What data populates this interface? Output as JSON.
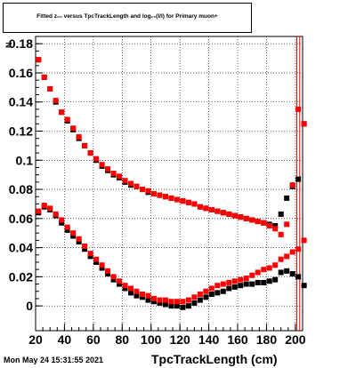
{
  "title": "Fitted z₀₀ versus TpcTrackLength and log₁₀(l/l) for Primary muon+",
  "ylabel_char": "N",
  "footer": "Mon May 24 15:31:55 2021",
  "colors": {
    "series_black": "#000000",
    "series_red": "#ff0000",
    "grid": "#000000",
    "vline": "#ff0000"
  },
  "chart_data": {
    "type": "scatter",
    "title": "Fitted z₀₀ versus TpcTrackLength and log₁₀(l/l) for Primary muon+",
    "xlabel": "TpcTrackLength (cm)",
    "ylabel": "",
    "xlim": [
      20,
      205
    ],
    "ylim": [
      -0.017,
      0.185
    ],
    "grid": true,
    "xticks": [
      20,
      40,
      60,
      80,
      100,
      120,
      140,
      160,
      180,
      200
    ],
    "xtick_labels": [
      "20",
      "40",
      "60",
      "80",
      "100",
      "120",
      "140",
      "160",
      "180",
      "200"
    ],
    "yticks": [
      0,
      0.02,
      0.04,
      0.06,
      0.08,
      0.1,
      0.12,
      0.14,
      0.16,
      0.18
    ],
    "ytick_labels": [
      "0",
      "0.02",
      "0.04",
      "0.06",
      "0.08",
      "0.1",
      "0.12",
      "0.14",
      "0.16",
      "0.18"
    ],
    "vlines": [
      201,
      203
    ],
    "series": [
      {
        "color": "#000000",
        "marker": "square",
        "size": 6,
        "x": [
          22,
          26,
          30,
          34,
          38,
          42,
          46,
          50,
          54,
          58,
          62,
          66,
          70,
          74,
          78,
          82,
          86,
          90,
          94,
          98,
          102,
          106,
          110,
          114,
          118,
          122,
          126,
          130,
          134,
          138,
          142,
          146,
          150,
          154,
          158,
          162,
          166,
          170,
          174,
          178,
          182,
          186,
          190,
          194,
          198,
          202,
          206
        ],
        "y": [
          0.169,
          0.157,
          0.149,
          0.14,
          0.133,
          0.127,
          0.121,
          0.115,
          0.11,
          0.105,
          0.1,
          0.096,
          0.093,
          0.09,
          0.088,
          0.085,
          0.083,
          0.082,
          0.08,
          0.078,
          0.077,
          0.076,
          0.075,
          0.074,
          0.073,
          0.072,
          0.071,
          0.07,
          0.068,
          0.067,
          0.066,
          0.065,
          0.064,
          0.063,
          0.062,
          0.061,
          0.06,
          0.059,
          0.058,
          0.057,
          0.056,
          0.055,
          0.063,
          0.074,
          0.082,
          0.087,
          0.125
        ]
      },
      {
        "color": "#ff0000",
        "marker": "square",
        "size": 6,
        "x": [
          22,
          26,
          30,
          34,
          38,
          42,
          46,
          50,
          54,
          58,
          62,
          66,
          70,
          74,
          78,
          82,
          86,
          90,
          94,
          98,
          102,
          106,
          110,
          114,
          118,
          122,
          126,
          130,
          134,
          138,
          142,
          146,
          150,
          154,
          158,
          162,
          166,
          170,
          174,
          178,
          182,
          186,
          190,
          194,
          198,
          202,
          206
        ],
        "y": [
          0.169,
          0.157,
          0.149,
          0.141,
          0.133,
          0.128,
          0.122,
          0.116,
          0.11,
          0.105,
          0.101,
          0.097,
          0.094,
          0.091,
          0.089,
          0.086,
          0.084,
          0.082,
          0.08,
          0.079,
          0.077,
          0.076,
          0.075,
          0.074,
          0.073,
          0.072,
          0.071,
          0.07,
          0.068,
          0.067,
          0.066,
          0.065,
          0.064,
          0.063,
          0.062,
          0.061,
          0.06,
          0.059,
          0.058,
          0.057,
          0.055,
          0.053,
          0.049,
          0.056,
          0.083,
          0.135,
          0.125
        ]
      },
      {
        "color": "#000000",
        "marker": "square",
        "size": 6,
        "x": [
          22,
          26,
          30,
          34,
          38,
          42,
          46,
          50,
          54,
          58,
          62,
          66,
          70,
          74,
          78,
          82,
          86,
          90,
          94,
          98,
          102,
          106,
          110,
          114,
          118,
          122,
          126,
          130,
          134,
          138,
          142,
          146,
          150,
          154,
          158,
          162,
          166,
          170,
          174,
          178,
          182,
          186,
          190,
          194,
          198,
          202,
          206
        ],
        "y": [
          0.064,
          0.068,
          0.066,
          0.062,
          0.057,
          0.052,
          0.048,
          0.044,
          0.039,
          0.034,
          0.03,
          0.026,
          0.022,
          0.018,
          0.015,
          0.012,
          0.009,
          0.007,
          0.006,
          0.004,
          0.003,
          0.002,
          0.001,
          0.0,
          0.0,
          -0.001,
          0.0,
          0.002,
          0.004,
          0.006,
          0.008,
          0.009,
          0.01,
          0.012,
          0.013,
          0.014,
          0.015,
          0.015,
          0.016,
          0.016,
          0.017,
          0.018,
          0.023,
          0.024,
          0.022,
          0.02,
          0.014
        ]
      },
      {
        "color": "#ff0000",
        "marker": "square",
        "size": 6,
        "x": [
          22,
          26,
          30,
          34,
          38,
          42,
          46,
          50,
          54,
          58,
          62,
          66,
          70,
          74,
          78,
          82,
          86,
          90,
          94,
          98,
          102,
          106,
          110,
          114,
          118,
          122,
          126,
          130,
          134,
          138,
          142,
          146,
          150,
          154,
          158,
          162,
          166,
          170,
          174,
          178,
          182,
          186,
          190,
          194,
          198,
          202,
          206
        ],
        "y": [
          0.065,
          0.069,
          0.067,
          0.063,
          0.059,
          0.054,
          0.05,
          0.046,
          0.041,
          0.036,
          0.032,
          0.028,
          0.024,
          0.02,
          0.017,
          0.014,
          0.012,
          0.01,
          0.008,
          0.007,
          0.005,
          0.004,
          0.004,
          0.003,
          0.003,
          0.003,
          0.004,
          0.006,
          0.008,
          0.01,
          0.012,
          0.014,
          0.015,
          0.016,
          0.017,
          0.018,
          0.019,
          0.021,
          0.023,
          0.025,
          0.026,
          0.028,
          0.032,
          0.034,
          0.037,
          0.039,
          0.045
        ]
      }
    ]
  }
}
